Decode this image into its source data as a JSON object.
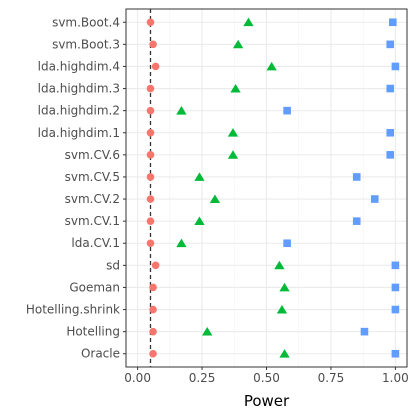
{
  "chart_data": {
    "type": "scatter",
    "title": "",
    "xlabel": "Power",
    "ylabel": "",
    "xlim": [
      0,
      1
    ],
    "x_ticks": [
      0,
      0.25,
      0.5,
      0.75,
      1
    ],
    "x_tick_labels": [
      "0.00",
      "0.25",
      "0.50",
      "0.75",
      "1.00"
    ],
    "reference_line": {
      "x": 0.05,
      "style": "dashed",
      "color": "#333333"
    },
    "grid": true,
    "legend": "none",
    "categories": [
      "svm.Boot.4",
      "svm.Boot.3",
      "lda.highdim.4",
      "lda.highdim.3",
      "lda.highdim.2",
      "lda.highdim.1",
      "svm.CV.6",
      "svm.CV.5",
      "svm.CV.2",
      "svm.CV.1",
      "lda.CV.1",
      "sd",
      "Goeman",
      "Hotelling.shrink",
      "Hotelling",
      "Oracle"
    ],
    "series": [
      {
        "marker": "circle",
        "color": "#F8766D",
        "values": [
          0.05,
          0.06,
          0.07,
          0.05,
          0.05,
          0.05,
          0.05,
          0.05,
          0.05,
          0.05,
          0.05,
          0.07,
          0.06,
          0.06,
          0.06,
          0.06
        ]
      },
      {
        "marker": "triangle",
        "color": "#00BA38",
        "values": [
          0.43,
          0.39,
          0.52,
          0.38,
          0.17,
          0.37,
          0.37,
          0.24,
          0.3,
          0.24,
          0.17,
          0.55,
          0.57,
          0.56,
          0.27,
          0.57
        ]
      },
      {
        "marker": "square",
        "color": "#619CFF",
        "values": [
          0.99,
          0.98,
          1.0,
          0.98,
          0.58,
          0.98,
          0.98,
          0.85,
          0.92,
          0.85,
          0.58,
          1.0,
          1.0,
          1.0,
          0.88,
          1.0
        ]
      }
    ]
  }
}
